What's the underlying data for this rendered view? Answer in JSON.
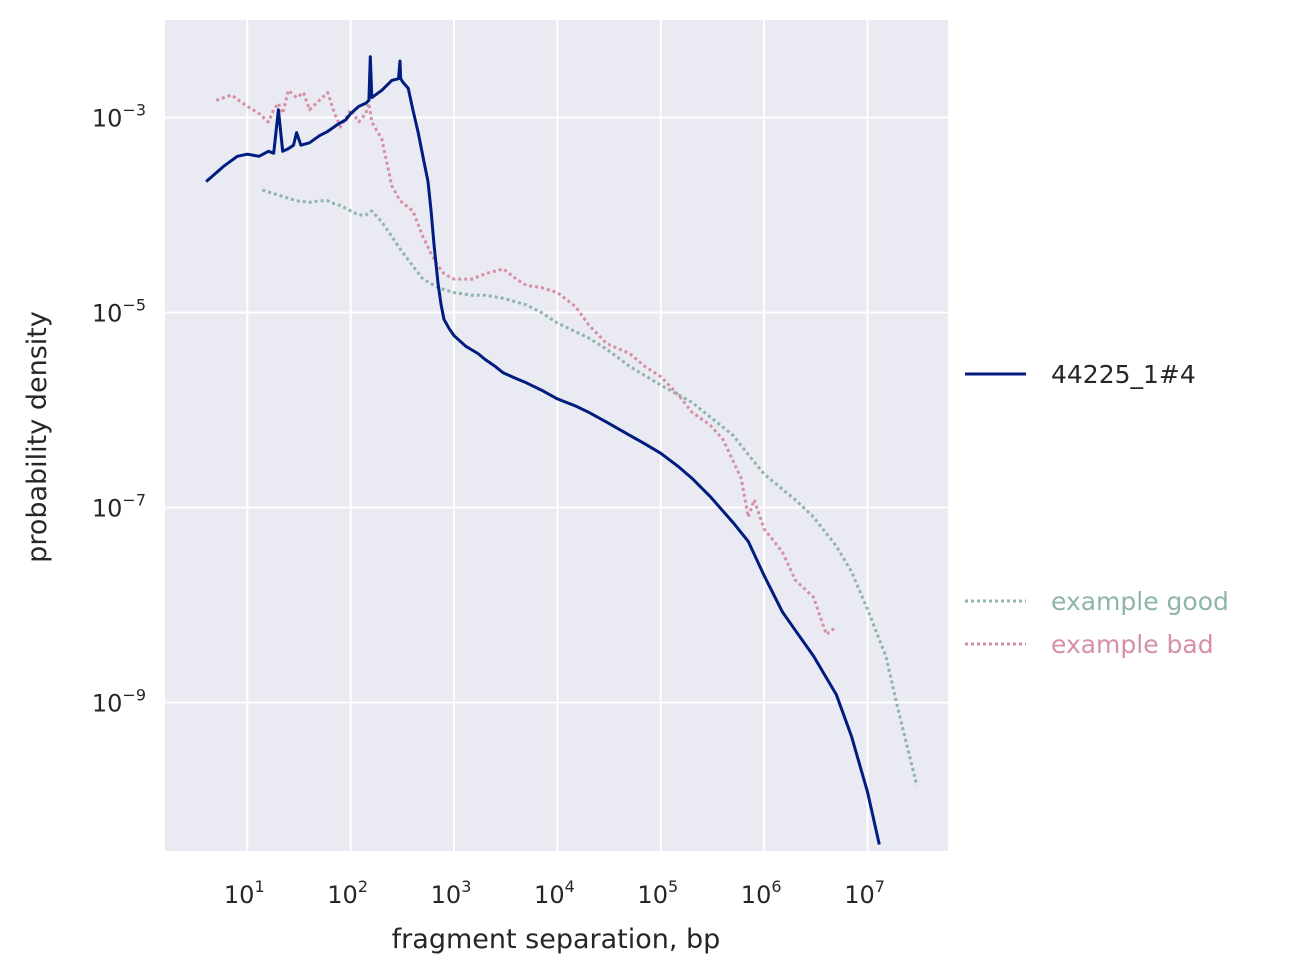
{
  "chart_data": {
    "type": "line",
    "xlabel": "fragment separation, bp",
    "ylabel": "probability density",
    "x_scale": "log",
    "y_scale": "log",
    "xlim": [
      1.6,
      60000000
    ],
    "ylim": [
      3e-11,
      0.01
    ],
    "x_ticks": [
      {
        "value": 10,
        "base": "10",
        "exp": "1"
      },
      {
        "value": 100,
        "base": "10",
        "exp": "2"
      },
      {
        "value": 1000,
        "base": "10",
        "exp": "3"
      },
      {
        "value": 10000,
        "base": "10",
        "exp": "4"
      },
      {
        "value": 100000,
        "base": "10",
        "exp": "5"
      },
      {
        "value": 1000000,
        "base": "10",
        "exp": "6"
      },
      {
        "value": 10000000,
        "base": "10",
        "exp": "7"
      }
    ],
    "y_ticks": [
      {
        "value": 0.001,
        "base": "10",
        "exp": "−3"
      },
      {
        "value": 1e-05,
        "base": "10",
        "exp": "−5"
      },
      {
        "value": 1e-07,
        "base": "10",
        "exp": "−7"
      },
      {
        "value": 1e-09,
        "base": "10",
        "exp": "−9"
      }
    ],
    "grid": true,
    "legend": "right, outside plot",
    "background_color": "#eaeaf2",
    "series": [
      {
        "name": "44225_1#4",
        "color": "#001c7f",
        "style": "solid",
        "legend_group": "top",
        "x": [
          4,
          6,
          8,
          10,
          13,
          16,
          18,
          20,
          22,
          25,
          28,
          30,
          33,
          40,
          50,
          60,
          75,
          90,
          100,
          120,
          140,
          150,
          155,
          160,
          200,
          250,
          290,
          300,
          305,
          320,
          360,
          400,
          450,
          500,
          560,
          600,
          640,
          700,
          750,
          800,
          900,
          1000,
          1300,
          1700,
          2000,
          2500,
          3000,
          4000,
          5000,
          7000,
          10000,
          15000,
          20000,
          30000,
          50000,
          70000,
          100000,
          150000,
          200000,
          300000,
          500000,
          700000,
          1000000,
          1500000,
          2000000,
          3000000,
          5000000,
          7000000,
          10000000,
          13000000
        ],
        "y": [
          0.00022,
          0.00032,
          0.0004,
          0.00042,
          0.0004,
          0.00045,
          0.00043,
          0.0012,
          0.00045,
          0.00048,
          0.00052,
          0.0007,
          0.00052,
          0.00055,
          0.00065,
          0.00072,
          0.00085,
          0.00095,
          0.0011,
          0.0013,
          0.0014,
          0.0015,
          0.0042,
          0.0016,
          0.0019,
          0.0024,
          0.0025,
          0.0038,
          0.0025,
          0.0023,
          0.002,
          0.0012,
          0.0007,
          0.0004,
          0.00022,
          0.00011,
          5e-05,
          2e-05,
          1.2e-05,
          8.5e-06,
          6.8e-06,
          5.8e-06,
          4.5e-06,
          3.8e-06,
          3.3e-06,
          2.8e-06,
          2.4e-06,
          2.1e-06,
          1.9e-06,
          1.6e-06,
          1.3e-06,
          1.1e-06,
          9.5e-07,
          7.5e-07,
          5.5e-07,
          4.5e-07,
          3.6e-07,
          2.6e-07,
          2e-07,
          1.3e-07,
          7e-08,
          4.5e-08,
          2e-08,
          8.5e-09,
          5.5e-09,
          3e-09,
          1.2e-09,
          4.5e-10,
          1.2e-10,
          3.5e-11
        ]
      },
      {
        "name": "example good",
        "color": "#8fb4ad",
        "style": "dotted",
        "legend_group": "bottom",
        "x": [
          14,
          20,
          30,
          40,
          50,
          60,
          70,
          80,
          100,
          120,
          140,
          160,
          200,
          250,
          300,
          400,
          500,
          700,
          1000,
          1500,
          2000,
          3000,
          5000,
          7000,
          10000,
          20000,
          30000,
          50000,
          100000,
          200000,
          300000,
          500000,
          700000,
          1000000,
          2000000,
          3000000,
          5000000,
          7000000,
          10000000,
          15000000,
          20000000,
          30000000
        ],
        "y": [
          0.00018,
          0.00016,
          0.00014,
          0.000135,
          0.00014,
          0.00014,
          0.00013,
          0.000125,
          0.00011,
          0.0001,
          0.0001,
          0.00011,
          8.5e-05,
          6e-05,
          4.5e-05,
          3e-05,
          2.2e-05,
          1.8e-05,
          1.6e-05,
          1.5e-05,
          1.5e-05,
          1.4e-05,
          1.2e-05,
          1e-05,
          7.8e-06,
          5.5e-06,
          4.2e-06,
          2.8e-06,
          1.8e-06,
          1.2e-06,
          8.5e-07,
          5.5e-07,
          3.5e-07,
          2.2e-07,
          1.2e-07,
          8e-08,
          4e-08,
          2.2e-08,
          9e-09,
          3e-09,
          8e-10,
          1.4e-10
        ]
      },
      {
        "name": "example bad",
        "color": "#d68fa8",
        "style": "dotted",
        "legend_group": "bottom",
        "x": [
          5,
          7,
          10,
          13,
          16,
          18,
          20,
          22,
          25,
          30,
          35,
          40,
          50,
          60,
          70,
          80,
          100,
          120,
          140,
          150,
          160,
          200,
          250,
          300,
          400,
          500,
          600,
          700,
          800,
          1000,
          1500,
          2000,
          3000,
          4000,
          5000,
          7000,
          10000,
          15000,
          20000,
          30000,
          50000,
          70000,
          100000,
          150000,
          200000,
          300000,
          400000,
          500000,
          600000,
          700000,
          800000,
          1000000,
          1500000,
          2000000,
          3000000,
          4000000,
          5000000
        ],
        "y": [
          0.0015,
          0.0017,
          0.0013,
          0.0011,
          0.0009,
          0.0012,
          0.0014,
          0.0011,
          0.0019,
          0.0016,
          0.0018,
          0.0012,
          0.0015,
          0.0018,
          0.0011,
          0.0008,
          0.0012,
          0.0009,
          0.0011,
          0.0014,
          0.0009,
          0.0006,
          0.0002,
          0.00014,
          0.00011,
          6e-05,
          4e-05,
          3e-05,
          2.5e-05,
          2.2e-05,
          2.2e-05,
          2.5e-05,
          2.8e-05,
          2.2e-05,
          1.9e-05,
          1.8e-05,
          1.6e-05,
          1.15e-05,
          7.5e-06,
          4.8e-06,
          3.8e-06,
          2.8e-06,
          2.2e-06,
          1.4e-06,
          9.5e-07,
          7e-07,
          5e-07,
          3e-07,
          2e-07,
          8e-08,
          1.2e-07,
          6e-08,
          3.5e-08,
          1.8e-08,
          1.2e-08,
          5e-09,
          6e-09
        ]
      }
    ]
  }
}
